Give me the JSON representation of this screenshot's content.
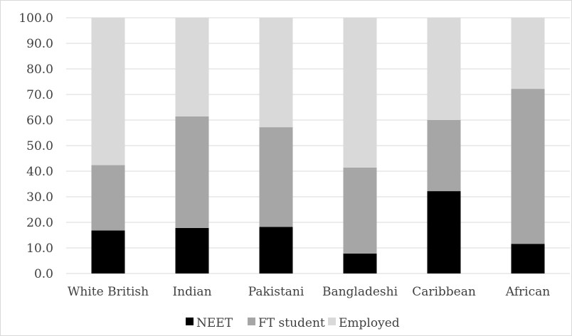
{
  "chart_data": {
    "type": "bar",
    "stacked": true,
    "title": "",
    "xlabel": "",
    "ylabel": "",
    "categories": [
      "White British",
      "Indian",
      "Pakistani",
      "Bangladeshi",
      "Caribbean",
      "African"
    ],
    "series": [
      {
        "name": "NEET",
        "color": "#000000",
        "values": [
          16.8,
          17.8,
          18.2,
          7.8,
          32.2,
          11.6
        ]
      },
      {
        "name": "FT student",
        "color": "#a6a6a6",
        "values": [
          25.6,
          43.6,
          39.0,
          33.6,
          27.8,
          60.6
        ]
      },
      {
        "name": "Employed",
        "color": "#d9d9d9",
        "values": [
          57.6,
          38.6,
          42.8,
          58.6,
          40.0,
          27.8
        ]
      }
    ],
    "ylim": [
      0,
      100
    ],
    "yticks": [
      "0.0",
      "10.0",
      "20.0",
      "30.0",
      "40.0",
      "50.0",
      "60.0",
      "70.0",
      "80.0",
      "90.0",
      "100.0"
    ],
    "grid": true,
    "legend_position": "bottom"
  }
}
